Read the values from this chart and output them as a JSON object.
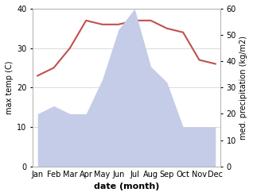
{
  "months": [
    "Jan",
    "Feb",
    "Mar",
    "Apr",
    "May",
    "Jun",
    "Jul",
    "Aug",
    "Sep",
    "Oct",
    "Nov",
    "Dec"
  ],
  "temperature": [
    23,
    25,
    30,
    37,
    36,
    36,
    37,
    37,
    35,
    34,
    27,
    26
  ],
  "precipitation": [
    20,
    23,
    20,
    20,
    33,
    52,
    60,
    38,
    32,
    15,
    15,
    15
  ],
  "temp_color": "#c0504d",
  "precip_fill_color": "#c5cce8",
  "temp_ylim": [
    0,
    40
  ],
  "precip_ylim": [
    0,
    60
  ],
  "temp_yticks": [
    0,
    10,
    20,
    30,
    40
  ],
  "precip_yticks": [
    0,
    10,
    20,
    30,
    40,
    50,
    60
  ],
  "ylabel_left": "max temp (C)",
  "ylabel_right": "med. precipitation (kg/m2)",
  "xlabel": "date (month)",
  "background_color": "#ffffff"
}
